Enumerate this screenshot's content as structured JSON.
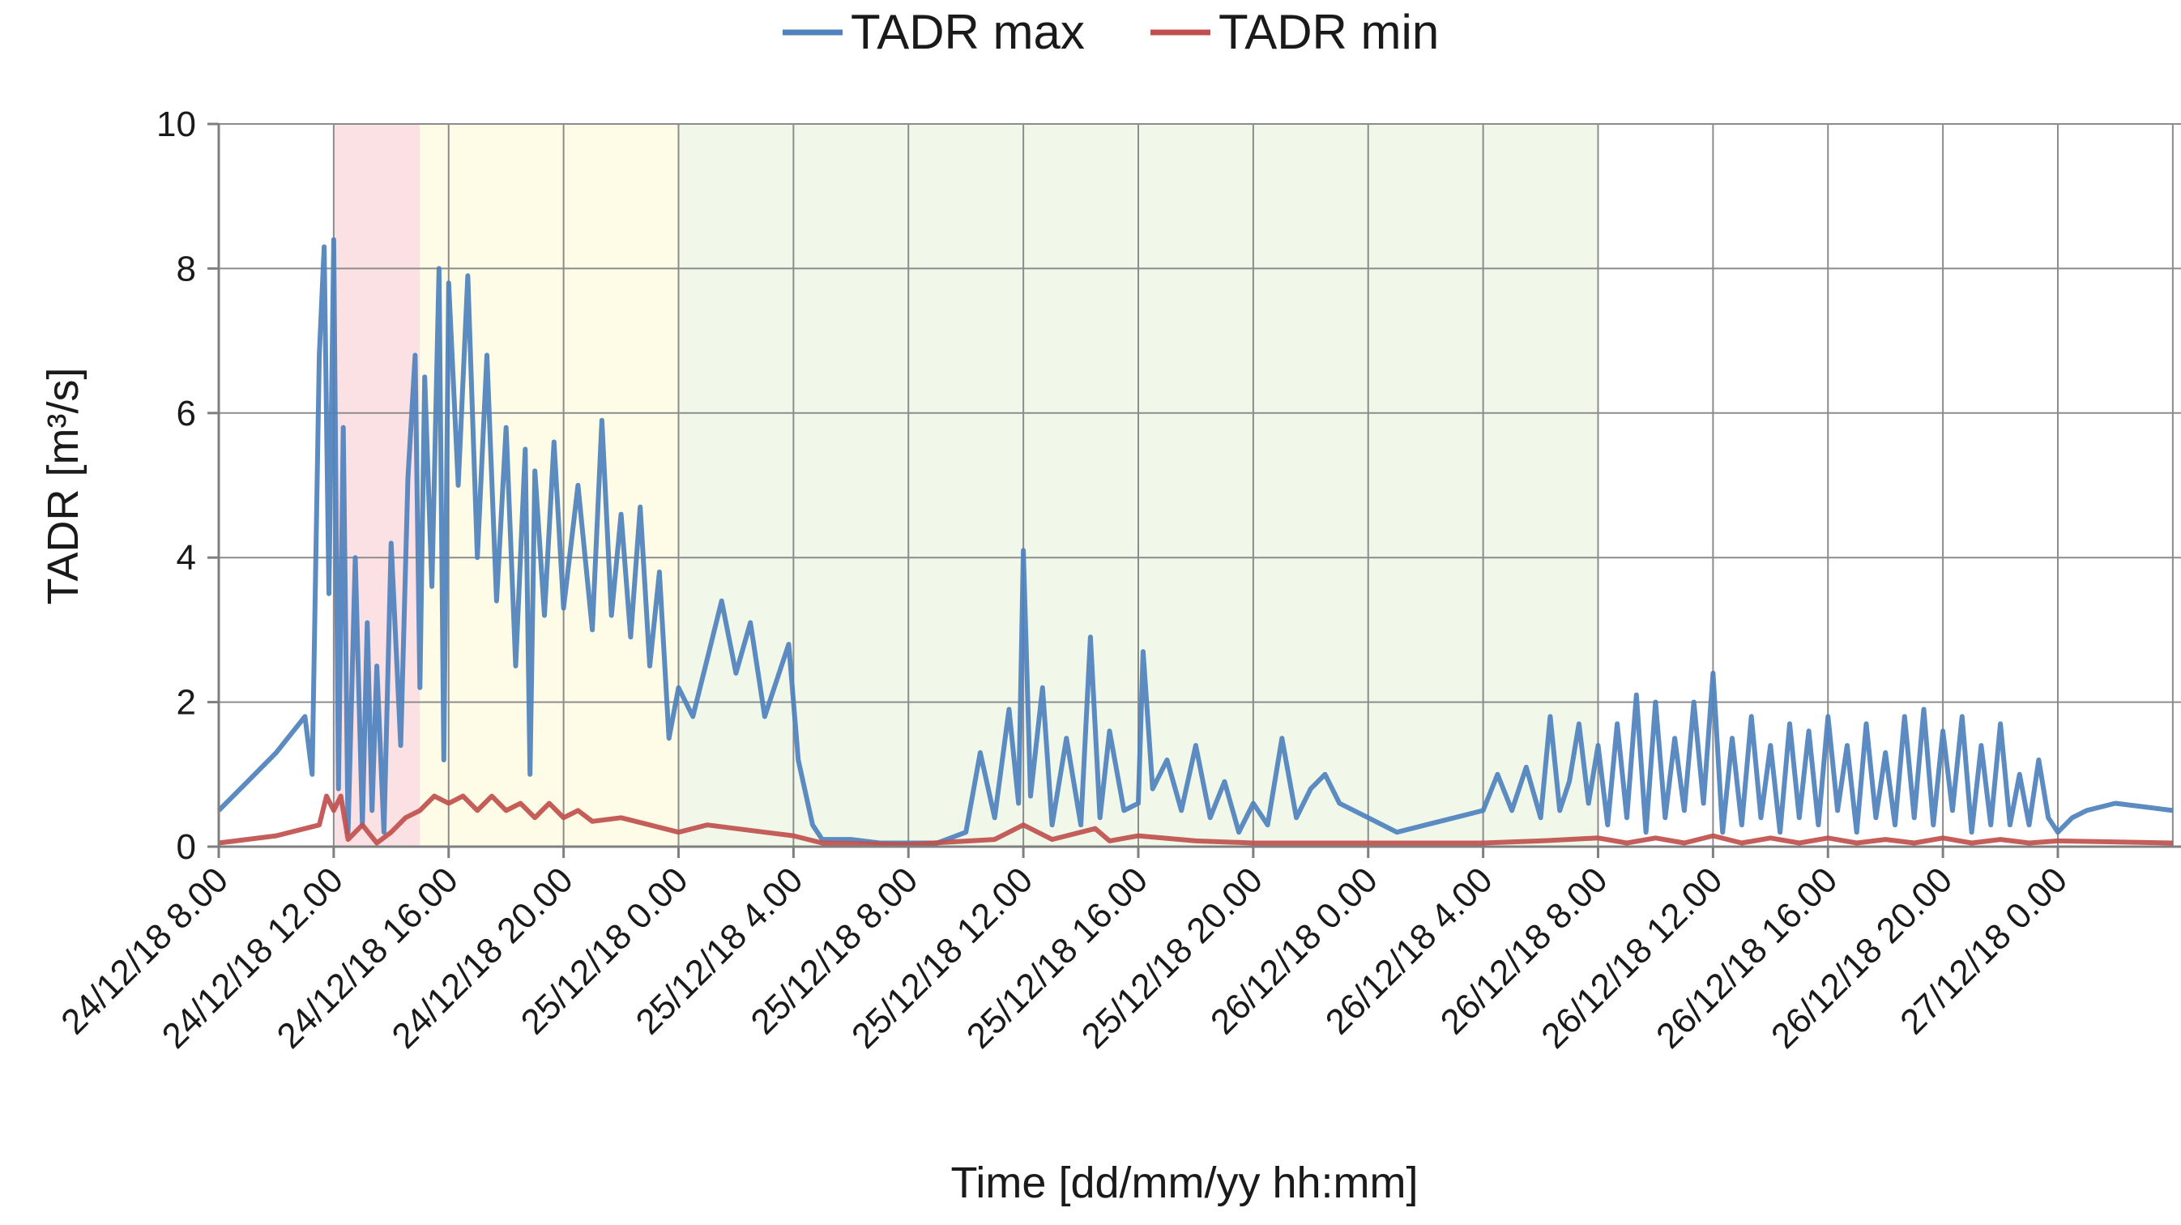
{
  "chart_data": {
    "type": "line",
    "xlabel": "Time [dd/mm/yy hh:mm]",
    "ylabel": "TADR [m³/s]",
    "ylim": [
      0,
      10
    ],
    "yticks": [
      "0",
      "2",
      "4",
      "6",
      "8",
      "10"
    ],
    "x_start": "2018-12-24T08:00",
    "x_end": "2018-12-27T04:00",
    "xtick_labels": [
      "24/12/18 8.00",
      "24/12/18 12.00",
      "24/12/18 16.00",
      "24/12/18 20.00",
      "25/12/18 0.00",
      "25/12/18 4.00",
      "25/12/18 8.00",
      "25/12/18 12.00",
      "25/12/18 16.00",
      "25/12/18 20.00",
      "26/12/18 0.00",
      "26/12/18 4.00",
      "26/12/18 8.00",
      "26/12/18 12.00",
      "26/12/18 16.00",
      "26/12/18 20.00",
      "27/12/18 0.00"
    ],
    "grid": true,
    "legend_position": "top-center",
    "shaded_periods": [
      {
        "start": "2018-12-24T12:00",
        "end": "2018-12-24T15:00",
        "color": "#fbe0e4"
      },
      {
        "start": "2018-12-24T15:00",
        "end": "2018-12-25T00:00",
        "color": "#fefce6"
      },
      {
        "start": "2018-12-25T00:00",
        "end": "2018-12-26T08:00",
        "color": "#f1f8ea"
      }
    ],
    "series": [
      {
        "name": "TADR max",
        "color": "#4e81bd",
        "points": [
          [
            "2018-12-24T08:00",
            0.5
          ],
          [
            "2018-12-24T09:00",
            0.9
          ],
          [
            "2018-12-24T10:00",
            1.3
          ],
          [
            "2018-12-24T11:00",
            1.8
          ],
          [
            "2018-12-24T11:15",
            1.0
          ],
          [
            "2018-12-24T11:30",
            6.8
          ],
          [
            "2018-12-24T11:40",
            8.3
          ],
          [
            "2018-12-24T11:50",
            3.5
          ],
          [
            "2018-12-24T12:00",
            8.4
          ],
          [
            "2018-12-24T12:10",
            0.8
          ],
          [
            "2018-12-24T12:20",
            5.8
          ],
          [
            "2018-12-24T12:30",
            0.2
          ],
          [
            "2018-12-24T12:45",
            4.0
          ],
          [
            "2018-12-24T13:00",
            0.3
          ],
          [
            "2018-12-24T13:10",
            3.1
          ],
          [
            "2018-12-24T13:20",
            0.5
          ],
          [
            "2018-12-24T13:30",
            2.5
          ],
          [
            "2018-12-24T13:45",
            0.2
          ],
          [
            "2018-12-24T14:00",
            4.2
          ],
          [
            "2018-12-24T14:20",
            1.4
          ],
          [
            "2018-12-24T14:35",
            5.1
          ],
          [
            "2018-12-24T14:50",
            6.8
          ],
          [
            "2018-12-24T15:00",
            2.2
          ],
          [
            "2018-12-24T15:10",
            6.5
          ],
          [
            "2018-12-24T15:25",
            3.6
          ],
          [
            "2018-12-24T15:40",
            8.0
          ],
          [
            "2018-12-24T15:50",
            1.2
          ],
          [
            "2018-12-24T16:00",
            7.8
          ],
          [
            "2018-12-24T16:20",
            5.0
          ],
          [
            "2018-12-24T16:40",
            7.9
          ],
          [
            "2018-12-24T17:00",
            4.0
          ],
          [
            "2018-12-24T17:20",
            6.8
          ],
          [
            "2018-12-24T17:40",
            3.4
          ],
          [
            "2018-12-24T18:00",
            5.8
          ],
          [
            "2018-12-24T18:20",
            2.5
          ],
          [
            "2018-12-24T18:40",
            5.5
          ],
          [
            "2018-12-24T18:50",
            1.0
          ],
          [
            "2018-12-24T19:00",
            5.2
          ],
          [
            "2018-12-24T19:20",
            3.2
          ],
          [
            "2018-12-24T19:40",
            5.6
          ],
          [
            "2018-12-24T20:00",
            3.3
          ],
          [
            "2018-12-24T20:30",
            5.0
          ],
          [
            "2018-12-24T21:00",
            3.0
          ],
          [
            "2018-12-24T21:20",
            5.9
          ],
          [
            "2018-12-24T21:40",
            3.2
          ],
          [
            "2018-12-24T22:00",
            4.6
          ],
          [
            "2018-12-24T22:20",
            2.9
          ],
          [
            "2018-12-24T22:40",
            4.7
          ],
          [
            "2018-12-24T23:00",
            2.5
          ],
          [
            "2018-12-24T23:20",
            3.8
          ],
          [
            "2018-12-24T23:40",
            1.5
          ],
          [
            "2018-12-25T00:00",
            2.2
          ],
          [
            "2018-12-25T00:30",
            1.8
          ],
          [
            "2018-12-25T01:00",
            2.6
          ],
          [
            "2018-12-25T01:30",
            3.4
          ],
          [
            "2018-12-25T02:00",
            2.4
          ],
          [
            "2018-12-25T02:30",
            3.1
          ],
          [
            "2018-12-25T03:00",
            1.8
          ],
          [
            "2018-12-25T03:30",
            2.4
          ],
          [
            "2018-12-25T03:50",
            2.8
          ],
          [
            "2018-12-25T04:10",
            1.2
          ],
          [
            "2018-12-25T04:40",
            0.3
          ],
          [
            "2018-12-25T05:00",
            0.1
          ],
          [
            "2018-12-25T06:00",
            0.1
          ],
          [
            "2018-12-25T07:00",
            0.05
          ],
          [
            "2018-12-25T08:00",
            0.05
          ],
          [
            "2018-12-25T09:00",
            0.05
          ],
          [
            "2018-12-25T10:00",
            0.2
          ],
          [
            "2018-12-25T10:30",
            1.3
          ],
          [
            "2018-12-25T11:00",
            0.4
          ],
          [
            "2018-12-25T11:30",
            1.9
          ],
          [
            "2018-12-25T11:50",
            0.6
          ],
          [
            "2018-12-25T12:00",
            4.1
          ],
          [
            "2018-12-25T12:15",
            0.7
          ],
          [
            "2018-12-25T12:40",
            2.2
          ],
          [
            "2018-12-25T13:00",
            0.3
          ],
          [
            "2018-12-25T13:30",
            1.5
          ],
          [
            "2018-12-25T14:00",
            0.3
          ],
          [
            "2018-12-25T14:20",
            2.9
          ],
          [
            "2018-12-25T14:40",
            0.4
          ],
          [
            "2018-12-25T15:00",
            1.6
          ],
          [
            "2018-12-25T15:30",
            0.5
          ],
          [
            "2018-12-25T16:00",
            0.6
          ],
          [
            "2018-12-25T16:10",
            2.7
          ],
          [
            "2018-12-25T16:30",
            0.8
          ],
          [
            "2018-12-25T17:00",
            1.2
          ],
          [
            "2018-12-25T17:30",
            0.5
          ],
          [
            "2018-12-25T18:00",
            1.4
          ],
          [
            "2018-12-25T18:30",
            0.4
          ],
          [
            "2018-12-25T19:00",
            0.9
          ],
          [
            "2018-12-25T19:30",
            0.2
          ],
          [
            "2018-12-25T20:00",
            0.6
          ],
          [
            "2018-12-25T20:30",
            0.3
          ],
          [
            "2018-12-25T21:00",
            1.5
          ],
          [
            "2018-12-25T21:30",
            0.4
          ],
          [
            "2018-12-25T22:00",
            0.8
          ],
          [
            "2018-12-25T22:30",
            1.0
          ],
          [
            "2018-12-25T23:00",
            0.6
          ],
          [
            "2018-12-26T00:00",
            0.4
          ],
          [
            "2018-12-26T01:00",
            0.2
          ],
          [
            "2018-12-26T02:00",
            0.3
          ],
          [
            "2018-12-26T03:00",
            0.4
          ],
          [
            "2018-12-26T04:00",
            0.5
          ],
          [
            "2018-12-26T04:30",
            1.0
          ],
          [
            "2018-12-26T05:00",
            0.5
          ],
          [
            "2018-12-26T05:30",
            1.1
          ],
          [
            "2018-12-26T06:00",
            0.4
          ],
          [
            "2018-12-26T06:20",
            1.8
          ],
          [
            "2018-12-26T06:40",
            0.5
          ],
          [
            "2018-12-26T07:00",
            0.9
          ],
          [
            "2018-12-26T07:20",
            1.7
          ],
          [
            "2018-12-26T07:40",
            0.6
          ],
          [
            "2018-12-26T08:00",
            1.4
          ],
          [
            "2018-12-26T08:20",
            0.3
          ],
          [
            "2018-12-26T08:40",
            1.7
          ],
          [
            "2018-12-26T09:00",
            0.4
          ],
          [
            "2018-12-26T09:20",
            2.1
          ],
          [
            "2018-12-26T09:40",
            0.2
          ],
          [
            "2018-12-26T10:00",
            2.0
          ],
          [
            "2018-12-26T10:20",
            0.4
          ],
          [
            "2018-12-26T10:40",
            1.5
          ],
          [
            "2018-12-26T11:00",
            0.5
          ],
          [
            "2018-12-26T11:20",
            2.0
          ],
          [
            "2018-12-26T11:40",
            0.6
          ],
          [
            "2018-12-26T12:00",
            2.4
          ],
          [
            "2018-12-26T12:20",
            0.2
          ],
          [
            "2018-12-26T12:40",
            1.5
          ],
          [
            "2018-12-26T13:00",
            0.3
          ],
          [
            "2018-12-26T13:20",
            1.8
          ],
          [
            "2018-12-26T13:40",
            0.4
          ],
          [
            "2018-12-26T14:00",
            1.4
          ],
          [
            "2018-12-26T14:20",
            0.2
          ],
          [
            "2018-12-26T14:40",
            1.7
          ],
          [
            "2018-12-26T15:00",
            0.4
          ],
          [
            "2018-12-26T15:20",
            1.6
          ],
          [
            "2018-12-26T15:40",
            0.3
          ],
          [
            "2018-12-26T16:00",
            1.8
          ],
          [
            "2018-12-26T16:20",
            0.5
          ],
          [
            "2018-12-26T16:40",
            1.4
          ],
          [
            "2018-12-26T17:00",
            0.2
          ],
          [
            "2018-12-26T17:20",
            1.7
          ],
          [
            "2018-12-26T17:40",
            0.4
          ],
          [
            "2018-12-26T18:00",
            1.3
          ],
          [
            "2018-12-26T18:20",
            0.3
          ],
          [
            "2018-12-26T18:40",
            1.8
          ],
          [
            "2018-12-26T19:00",
            0.4
          ],
          [
            "2018-12-26T19:20",
            1.9
          ],
          [
            "2018-12-26T19:40",
            0.3
          ],
          [
            "2018-12-26T20:00",
            1.6
          ],
          [
            "2018-12-26T20:20",
            0.5
          ],
          [
            "2018-12-26T20:40",
            1.8
          ],
          [
            "2018-12-26T21:00",
            0.2
          ],
          [
            "2018-12-26T21:20",
            1.4
          ],
          [
            "2018-12-26T21:40",
            0.3
          ],
          [
            "2018-12-26T22:00",
            1.7
          ],
          [
            "2018-12-26T22:20",
            0.3
          ],
          [
            "2018-12-26T22:40",
            1.0
          ],
          [
            "2018-12-26T23:00",
            0.3
          ],
          [
            "2018-12-26T23:20",
            1.2
          ],
          [
            "2018-12-26T23:40",
            0.4
          ],
          [
            "2018-12-27T00:00",
            0.2
          ],
          [
            "2018-12-27T00:30",
            0.4
          ],
          [
            "2018-12-27T01:00",
            0.5
          ],
          [
            "2018-12-27T02:00",
            0.6
          ],
          [
            "2018-12-27T03:00",
            0.55
          ],
          [
            "2018-12-27T04:00",
            0.5
          ]
        ]
      },
      {
        "name": "TADR min",
        "color": "#c0504d",
        "points": [
          [
            "2018-12-24T08:00",
            0.05
          ],
          [
            "2018-12-24T10:00",
            0.15
          ],
          [
            "2018-12-24T11:30",
            0.3
          ],
          [
            "2018-12-24T11:45",
            0.7
          ],
          [
            "2018-12-24T12:00",
            0.5
          ],
          [
            "2018-12-24T12:15",
            0.7
          ],
          [
            "2018-12-24T12:30",
            0.1
          ],
          [
            "2018-12-24T13:00",
            0.3
          ],
          [
            "2018-12-24T13:30",
            0.05
          ],
          [
            "2018-12-24T14:00",
            0.2
          ],
          [
            "2018-12-24T14:30",
            0.4
          ],
          [
            "2018-12-24T15:00",
            0.5
          ],
          [
            "2018-12-24T15:30",
            0.7
          ],
          [
            "2018-12-24T16:00",
            0.6
          ],
          [
            "2018-12-24T16:30",
            0.7
          ],
          [
            "2018-12-24T17:00",
            0.5
          ],
          [
            "2018-12-24T17:30",
            0.7
          ],
          [
            "2018-12-24T18:00",
            0.5
          ],
          [
            "2018-12-24T18:30",
            0.6
          ],
          [
            "2018-12-24T19:00",
            0.4
          ],
          [
            "2018-12-24T19:30",
            0.6
          ],
          [
            "2018-12-24T20:00",
            0.4
          ],
          [
            "2018-12-24T20:30",
            0.5
          ],
          [
            "2018-12-24T21:00",
            0.35
          ],
          [
            "2018-12-24T22:00",
            0.4
          ],
          [
            "2018-12-24T23:00",
            0.3
          ],
          [
            "2018-12-25T00:00",
            0.2
          ],
          [
            "2018-12-25T01:00",
            0.3
          ],
          [
            "2018-12-25T02:00",
            0.25
          ],
          [
            "2018-12-25T03:00",
            0.2
          ],
          [
            "2018-12-25T04:00",
            0.15
          ],
          [
            "2018-12-25T05:00",
            0.05
          ],
          [
            "2018-12-25T08:00",
            0.03
          ],
          [
            "2018-12-25T11:00",
            0.1
          ],
          [
            "2018-12-25T12:00",
            0.3
          ],
          [
            "2018-12-25T13:00",
            0.1
          ],
          [
            "2018-12-25T14:30",
            0.25
          ],
          [
            "2018-12-25T15:00",
            0.08
          ],
          [
            "2018-12-25T16:00",
            0.15
          ],
          [
            "2018-12-25T18:00",
            0.08
          ],
          [
            "2018-12-25T20:00",
            0.05
          ],
          [
            "2018-12-26T00:00",
            0.05
          ],
          [
            "2018-12-26T04:00",
            0.05
          ],
          [
            "2018-12-26T06:00",
            0.08
          ],
          [
            "2018-12-26T08:00",
            0.12
          ],
          [
            "2018-12-26T09:00",
            0.05
          ],
          [
            "2018-12-26T10:00",
            0.12
          ],
          [
            "2018-12-26T11:00",
            0.05
          ],
          [
            "2018-12-26T12:00",
            0.15
          ],
          [
            "2018-12-26T13:00",
            0.05
          ],
          [
            "2018-12-26T14:00",
            0.12
          ],
          [
            "2018-12-26T15:00",
            0.05
          ],
          [
            "2018-12-26T16:00",
            0.12
          ],
          [
            "2018-12-26T17:00",
            0.05
          ],
          [
            "2018-12-26T18:00",
            0.1
          ],
          [
            "2018-12-26T19:00",
            0.05
          ],
          [
            "2018-12-26T20:00",
            0.12
          ],
          [
            "2018-12-26T21:00",
            0.05
          ],
          [
            "2018-12-26T22:00",
            0.1
          ],
          [
            "2018-12-26T23:00",
            0.05
          ],
          [
            "2018-12-27T00:00",
            0.08
          ],
          [
            "2018-12-27T04:00",
            0.05
          ]
        ]
      }
    ]
  }
}
